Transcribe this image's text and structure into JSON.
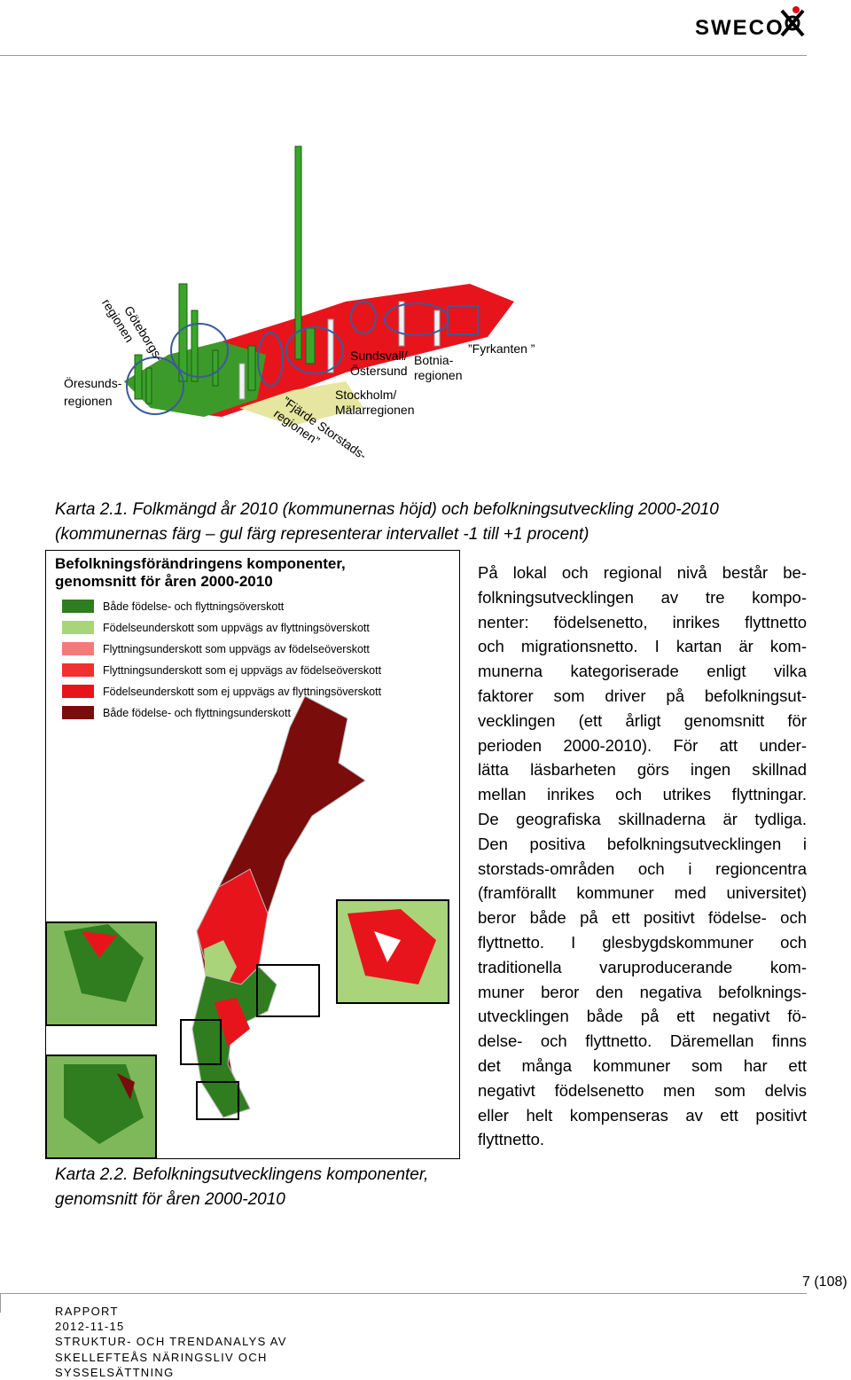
{
  "header": {
    "logo": "SWECO"
  },
  "figure1": {
    "labels": [
      {
        "lines": [
          "Öresunds-",
          "regionen"
        ]
      },
      {
        "lines": [
          "Göteborgs-",
          "regionen"
        ]
      },
      {
        "lines": [
          "Sundsvall/",
          "Östersund"
        ]
      },
      {
        "lines": [
          "Botnia-",
          "regionen"
        ]
      },
      {
        "lines": [
          "Stockholm/",
          "Mälarregionen"
        ]
      },
      {
        "lines": [
          "”Fjärde Storstads-",
          "regionen”"
        ]
      },
      {
        "lines": [
          "”Fyrkanten ”"
        ]
      }
    ],
    "caption": [
      "Karta 2.1. Folkmängd år 2010 (kommunernas höjd) och befolkningsutveckling 2000-2010",
      "(kommunernas färg – gul färg representerar intervallet -1 till +1 procent)"
    ]
  },
  "figure2": {
    "legend_title": [
      "Befolkningsförändringens komponenter,",
      "genomsnitt för åren 2000-2010"
    ],
    "legend": [
      {
        "label": "Både födelse- och flyttningsöverskott",
        "color": "#2f7d1e"
      },
      {
        "label": "Födelseunderskott som uppvägs av flyttningsöverskott",
        "color": "#a9d47a"
      },
      {
        "label": "Flyttningsunderskott som uppvägs av födelseöverskott",
        "color": "#f47a7a"
      },
      {
        "label": "Flyttningsunderskott som ej uppvägs av födelseöverskott",
        "color": "#f23030"
      },
      {
        "label": "Födelseunderskott som ej uppvägs av flyttningsöverskott",
        "color": "#e8141c"
      },
      {
        "label": "Både födelse- och flyttningsunderskott",
        "color": "#7a0c0c"
      }
    ],
    "caption": [
      "Karta 2.2. Befolkningsutvecklingens komponenter,",
      "genomsnitt för åren 2000-2010"
    ]
  },
  "body": {
    "lines": [
      "På lokal och regional nivå består be-",
      "folkningsutvecklingen av tre kompo-",
      "nenter: födelsenetto, inrikes flyttnetto",
      "och migrationsnetto. I kartan är kom-",
      "munerna kategoriserade enligt vilka",
      "faktorer som driver på befolkningsut-",
      "vecklingen (ett årligt genomsnitt för",
      "perioden 2000-2010). För att under-",
      "lätta läsbarheten görs ingen skillnad",
      "mellan inrikes och utrikes flyttningar.",
      "De geografiska skillnaderna är tydliga.",
      "Den positiva befolkningsutvecklingen i",
      "storstads-områden och i regioncentra",
      "(framförallt kommuner med universitet)",
      "beror både på ett positivt födelse- och",
      "flyttnetto. I glesbygdskommuner och",
      "traditionella varuproducerande kom-",
      "muner beror den negativa befolknings-",
      "utvecklingen både på ett negativt fö-",
      "delse- och flyttnetto. Däremellan finns",
      "det många kommuner som har ett",
      "negativt födelsenetto men som delvis",
      "eller helt kompenseras av ett positivt",
      "flyttnetto."
    ]
  },
  "footer": {
    "page": "7 (108)",
    "lines": [
      "RAPPORT",
      "2012-11-15",
      "STRUKTUR- OCH TRENDANALYS AV",
      "SKELLEFTEÅS NÄRINGSLIV OCH",
      "SYSSELSÄTTNING"
    ]
  }
}
